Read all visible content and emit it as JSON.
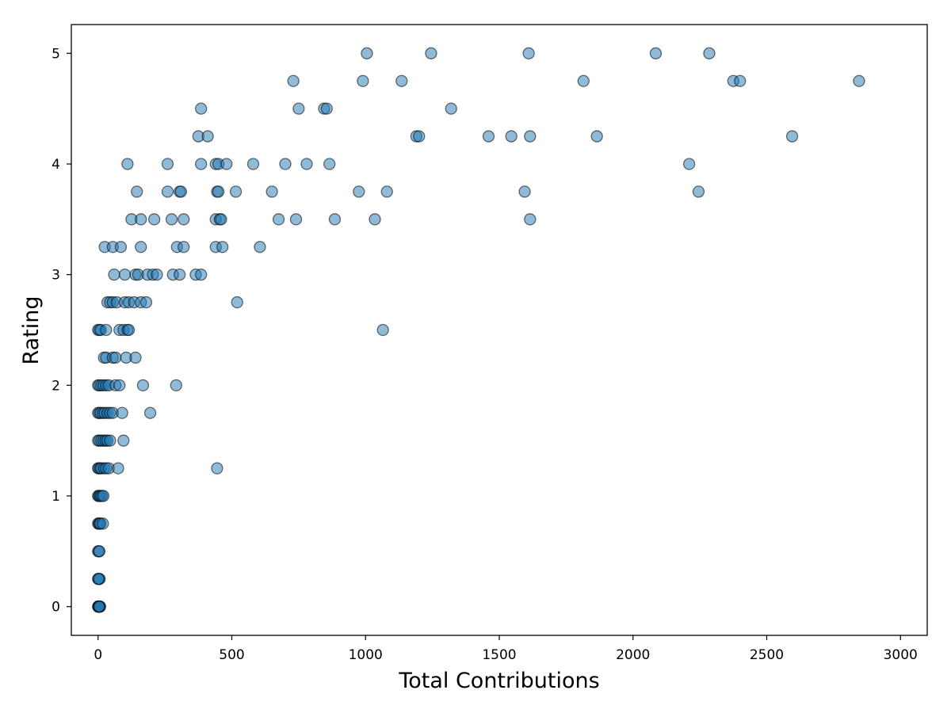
{
  "chart_data": {
    "type": "scatter",
    "title": "",
    "xlabel": "Total Contributions",
    "ylabel": "Rating",
    "xlim": [
      -100,
      3100
    ],
    "ylim": [
      -0.26,
      5.26
    ],
    "xticks": [
      0,
      500,
      1000,
      1500,
      2000,
      2500,
      3000
    ],
    "xtick_labels": [
      "0",
      "500",
      "1000",
      "1500",
      "2000",
      "2500",
      "3000"
    ],
    "yticks": [
      0,
      1,
      2,
      3,
      4,
      5
    ],
    "ytick_labels": [
      "0",
      "1",
      "2",
      "3",
      "4",
      "5"
    ],
    "grid": false,
    "legend": "none",
    "marker_color": "#1f77b4",
    "marker_alpha": 0.5,
    "marker_edge_color": "#000000",
    "points": [
      [
        0,
        0
      ],
      [
        2,
        0
      ],
      [
        4,
        0
      ],
      [
        6,
        0
      ],
      [
        8,
        0
      ],
      [
        1,
        0
      ],
      [
        3,
        0
      ],
      [
        5,
        0
      ],
      [
        0,
        0.25
      ],
      [
        3,
        0.25
      ],
      [
        6,
        0.25
      ],
      [
        2,
        0.25
      ],
      [
        0,
        0.5
      ],
      [
        3,
        0.5
      ],
      [
        5,
        0.5
      ],
      [
        0,
        0.75
      ],
      [
        3,
        0.75
      ],
      [
        6,
        0.75
      ],
      [
        9,
        0.75
      ],
      [
        18,
        0.75
      ],
      [
        0,
        1
      ],
      [
        3,
        1
      ],
      [
        6,
        1
      ],
      [
        10,
        1
      ],
      [
        15,
        1
      ],
      [
        20,
        1
      ],
      [
        0,
        1.25
      ],
      [
        3,
        1.25
      ],
      [
        8,
        1.25
      ],
      [
        12,
        1.25
      ],
      [
        22,
        1.25
      ],
      [
        30,
        1.25
      ],
      [
        40,
        1.25
      ],
      [
        75,
        1.25
      ],
      [
        445,
        1.25
      ],
      [
        0,
        1.5
      ],
      [
        5,
        1.5
      ],
      [
        12,
        1.5
      ],
      [
        20,
        1.5
      ],
      [
        28,
        1.5
      ],
      [
        35,
        1.5
      ],
      [
        45,
        1.5
      ],
      [
        95,
        1.5
      ],
      [
        0,
        1.75
      ],
      [
        5,
        1.75
      ],
      [
        10,
        1.75
      ],
      [
        18,
        1.75
      ],
      [
        25,
        1.75
      ],
      [
        35,
        1.75
      ],
      [
        45,
        1.75
      ],
      [
        55,
        1.75
      ],
      [
        90,
        1.75
      ],
      [
        195,
        1.75
      ],
      [
        0,
        2
      ],
      [
        5,
        2
      ],
      [
        12,
        2
      ],
      [
        20,
        2
      ],
      [
        30,
        2
      ],
      [
        40,
        2
      ],
      [
        65,
        2
      ],
      [
        80,
        2
      ],
      [
        168,
        2
      ],
      [
        292,
        2
      ],
      [
        22,
        2.25
      ],
      [
        30,
        2.25
      ],
      [
        55,
        2.25
      ],
      [
        65,
        2.25
      ],
      [
        105,
        2.25
      ],
      [
        140,
        2.25
      ],
      [
        0,
        2.5
      ],
      [
        5,
        2.5
      ],
      [
        10,
        2.5
      ],
      [
        30,
        2.5
      ],
      [
        80,
        2.5
      ],
      [
        95,
        2.5
      ],
      [
        110,
        2.5
      ],
      [
        115,
        2.5
      ],
      [
        1065,
        2.5
      ],
      [
        35,
        2.75
      ],
      [
        45,
        2.75
      ],
      [
        55,
        2.75
      ],
      [
        70,
        2.75
      ],
      [
        100,
        2.75
      ],
      [
        115,
        2.75
      ],
      [
        135,
        2.75
      ],
      [
        160,
        2.75
      ],
      [
        180,
        2.75
      ],
      [
        520,
        2.75
      ],
      [
        60,
        3
      ],
      [
        100,
        3
      ],
      [
        140,
        3
      ],
      [
        150,
        3
      ],
      [
        185,
        3
      ],
      [
        205,
        3
      ],
      [
        220,
        3
      ],
      [
        280,
        3
      ],
      [
        305,
        3
      ],
      [
        365,
        3
      ],
      [
        385,
        3
      ],
      [
        25,
        3.25
      ],
      [
        55,
        3.25
      ],
      [
        85,
        3.25
      ],
      [
        160,
        3.25
      ],
      [
        295,
        3.25
      ],
      [
        320,
        3.25
      ],
      [
        440,
        3.25
      ],
      [
        465,
        3.25
      ],
      [
        605,
        3.25
      ],
      [
        125,
        3.5
      ],
      [
        160,
        3.5
      ],
      [
        210,
        3.5
      ],
      [
        275,
        3.5
      ],
      [
        320,
        3.5
      ],
      [
        440,
        3.5
      ],
      [
        455,
        3.5
      ],
      [
        460,
        3.5
      ],
      [
        675,
        3.5
      ],
      [
        740,
        3.5
      ],
      [
        885,
        3.5
      ],
      [
        1035,
        3.5
      ],
      [
        1615,
        3.5
      ],
      [
        145,
        3.75
      ],
      [
        260,
        3.75
      ],
      [
        305,
        3.75
      ],
      [
        310,
        3.75
      ],
      [
        445,
        3.75
      ],
      [
        450,
        3.75
      ],
      [
        515,
        3.75
      ],
      [
        650,
        3.75
      ],
      [
        975,
        3.75
      ],
      [
        1080,
        3.75
      ],
      [
        1595,
        3.75
      ],
      [
        2245,
        3.75
      ],
      [
        110,
        4
      ],
      [
        260,
        4
      ],
      [
        385,
        4
      ],
      [
        440,
        4
      ],
      [
        450,
        4
      ],
      [
        480,
        4
      ],
      [
        580,
        4
      ],
      [
        700,
        4
      ],
      [
        780,
        4
      ],
      [
        865,
        4
      ],
      [
        2210,
        4
      ],
      [
        375,
        4.25
      ],
      [
        410,
        4.25
      ],
      [
        1190,
        4.25
      ],
      [
        1200,
        4.25
      ],
      [
        1460,
        4.25
      ],
      [
        1545,
        4.25
      ],
      [
        1615,
        4.25
      ],
      [
        1865,
        4.25
      ],
      [
        2595,
        4.25
      ],
      [
        385,
        4.5
      ],
      [
        750,
        4.5
      ],
      [
        845,
        4.5
      ],
      [
        855,
        4.5
      ],
      [
        1320,
        4.5
      ],
      [
        730,
        4.75
      ],
      [
        990,
        4.75
      ],
      [
        1135,
        4.75
      ],
      [
        1815,
        4.75
      ],
      [
        2375,
        4.75
      ],
      [
        2400,
        4.75
      ],
      [
        2845,
        4.75
      ],
      [
        1005,
        5
      ],
      [
        1245,
        5
      ],
      [
        1610,
        5
      ],
      [
        2085,
        5
      ],
      [
        2285,
        5
      ]
    ]
  }
}
